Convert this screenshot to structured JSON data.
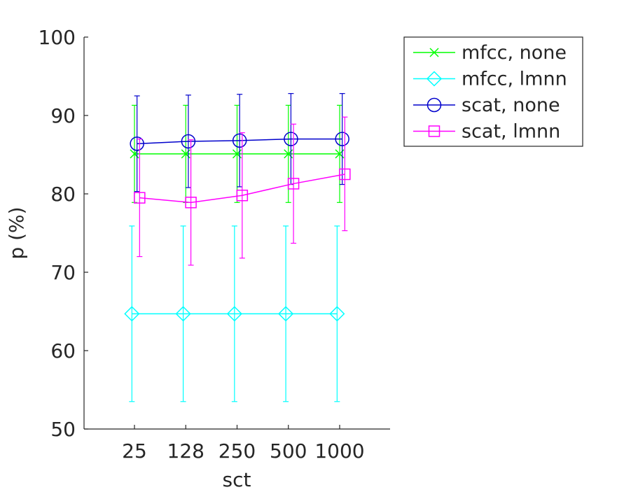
{
  "chart_data": {
    "type": "line",
    "xlabel": "sct",
    "ylabel": "p (%)",
    "ylim": [
      50,
      100
    ],
    "yticks": [
      50,
      60,
      70,
      80,
      90,
      100
    ],
    "categories": [
      "25",
      "128",
      "250",
      "500",
      "1000"
    ],
    "grid": false,
    "legend_position": "top-right",
    "series": [
      {
        "name": "mfcc, none",
        "color": "#00ff00",
        "marker": "x",
        "x_offset": 0,
        "values": [
          85.1,
          85.1,
          85.1,
          85.1,
          85.1
        ],
        "err_low": [
          78.9,
          78.9,
          78.9,
          78.9,
          78.9
        ],
        "err_high": [
          91.3,
          91.3,
          91.3,
          91.3,
          91.3
        ]
      },
      {
        "name": "mfcc, lmnn",
        "color": "#00ffff",
        "marker": "diamond",
        "x_offset": -0.05,
        "values": [
          64.7,
          64.7,
          64.7,
          64.7,
          64.7
        ],
        "err_low": [
          53.5,
          53.5,
          53.5,
          53.5,
          53.5
        ],
        "err_high": [
          75.9,
          75.9,
          75.9,
          75.9,
          75.9
        ]
      },
      {
        "name": "scat, none",
        "color": "#0000cc",
        "marker": "circle",
        "x_offset": 0.05,
        "values": [
          86.4,
          86.7,
          86.8,
          87.0,
          87.0
        ],
        "err_low": [
          80.3,
          80.8,
          80.9,
          81.2,
          81.2
        ],
        "err_high": [
          92.5,
          92.6,
          92.7,
          92.8,
          92.8
        ]
      },
      {
        "name": "scat, lmnn",
        "color": "#ff00ff",
        "marker": "square",
        "x_offset": 0.1,
        "values": [
          79.5,
          78.9,
          79.8,
          81.3,
          82.5
        ],
        "err_low": [
          72.0,
          70.9,
          71.8,
          73.7,
          75.3
        ],
        "err_high": [
          87.0,
          86.9,
          87.8,
          88.9,
          89.8
        ]
      }
    ]
  }
}
